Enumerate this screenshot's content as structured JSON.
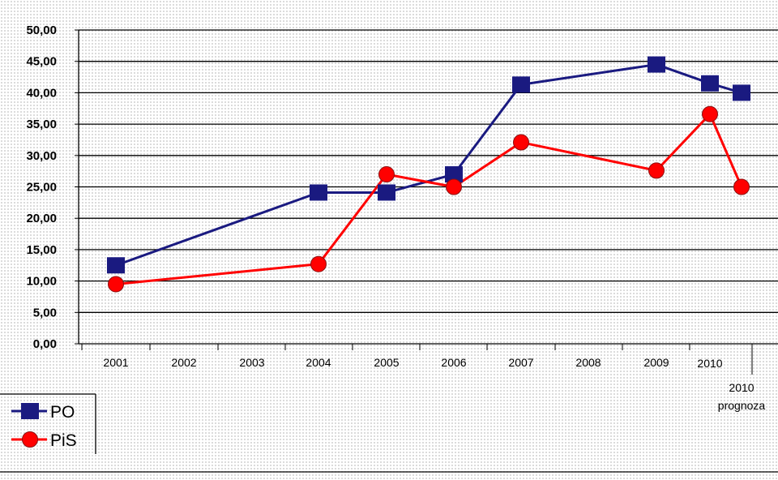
{
  "chart_data": {
    "type": "line",
    "title": "",
    "xlabel": "",
    "ylabel": "",
    "categories": [
      "2001",
      "2002",
      "2003",
      "2004",
      "2005",
      "2006",
      "2007",
      "2008",
      "2009",
      "2010",
      "2010 prognoza"
    ],
    "category_label_lines": [
      [
        "2001"
      ],
      [
        "2002"
      ],
      [
        "2003"
      ],
      [
        "2004"
      ],
      [
        "2005"
      ],
      [
        "2006"
      ],
      [
        "2007"
      ],
      [
        "2008"
      ],
      [
        "2009"
      ],
      [
        "2010"
      ],
      [
        "2010",
        "prognoza"
      ]
    ],
    "ylim": [
      0,
      50
    ],
    "ytick_labels": [
      "0,00",
      "5,00",
      "10,00",
      "15,00",
      "20,00",
      "25,00",
      "30,00",
      "35,00",
      "40,00",
      "45,00",
      "50,00"
    ],
    "grid": true,
    "legend_position": "bottom-left",
    "series": [
      {
        "name": "PO",
        "color": "#1a1a80",
        "marker": "square",
        "points": [
          {
            "x": "2001",
            "y": 12.5
          },
          {
            "x": "2004",
            "y": 24.1
          },
          {
            "x": "2005",
            "y": 24.1
          },
          {
            "x": "2006",
            "y": 27.0
          },
          {
            "x": "2007",
            "y": 41.3
          },
          {
            "x": "2009",
            "y": 44.5
          },
          {
            "x": "2010",
            "y": 41.5
          },
          {
            "x": "2010 prognoza",
            "y": 40.0
          }
        ]
      },
      {
        "name": "PiS",
        "color": "#ff0000",
        "marker": "circle",
        "points": [
          {
            "x": "2001",
            "y": 9.5
          },
          {
            "x": "2004",
            "y": 12.7
          },
          {
            "x": "2005",
            "y": 27.0
          },
          {
            "x": "2006",
            "y": 25.0
          },
          {
            "x": "2007",
            "y": 32.1
          },
          {
            "x": "2009",
            "y": 27.6
          },
          {
            "x": "2010",
            "y": 36.6
          },
          {
            "x": "2010 prognoza",
            "y": 25.0
          }
        ]
      }
    ]
  }
}
